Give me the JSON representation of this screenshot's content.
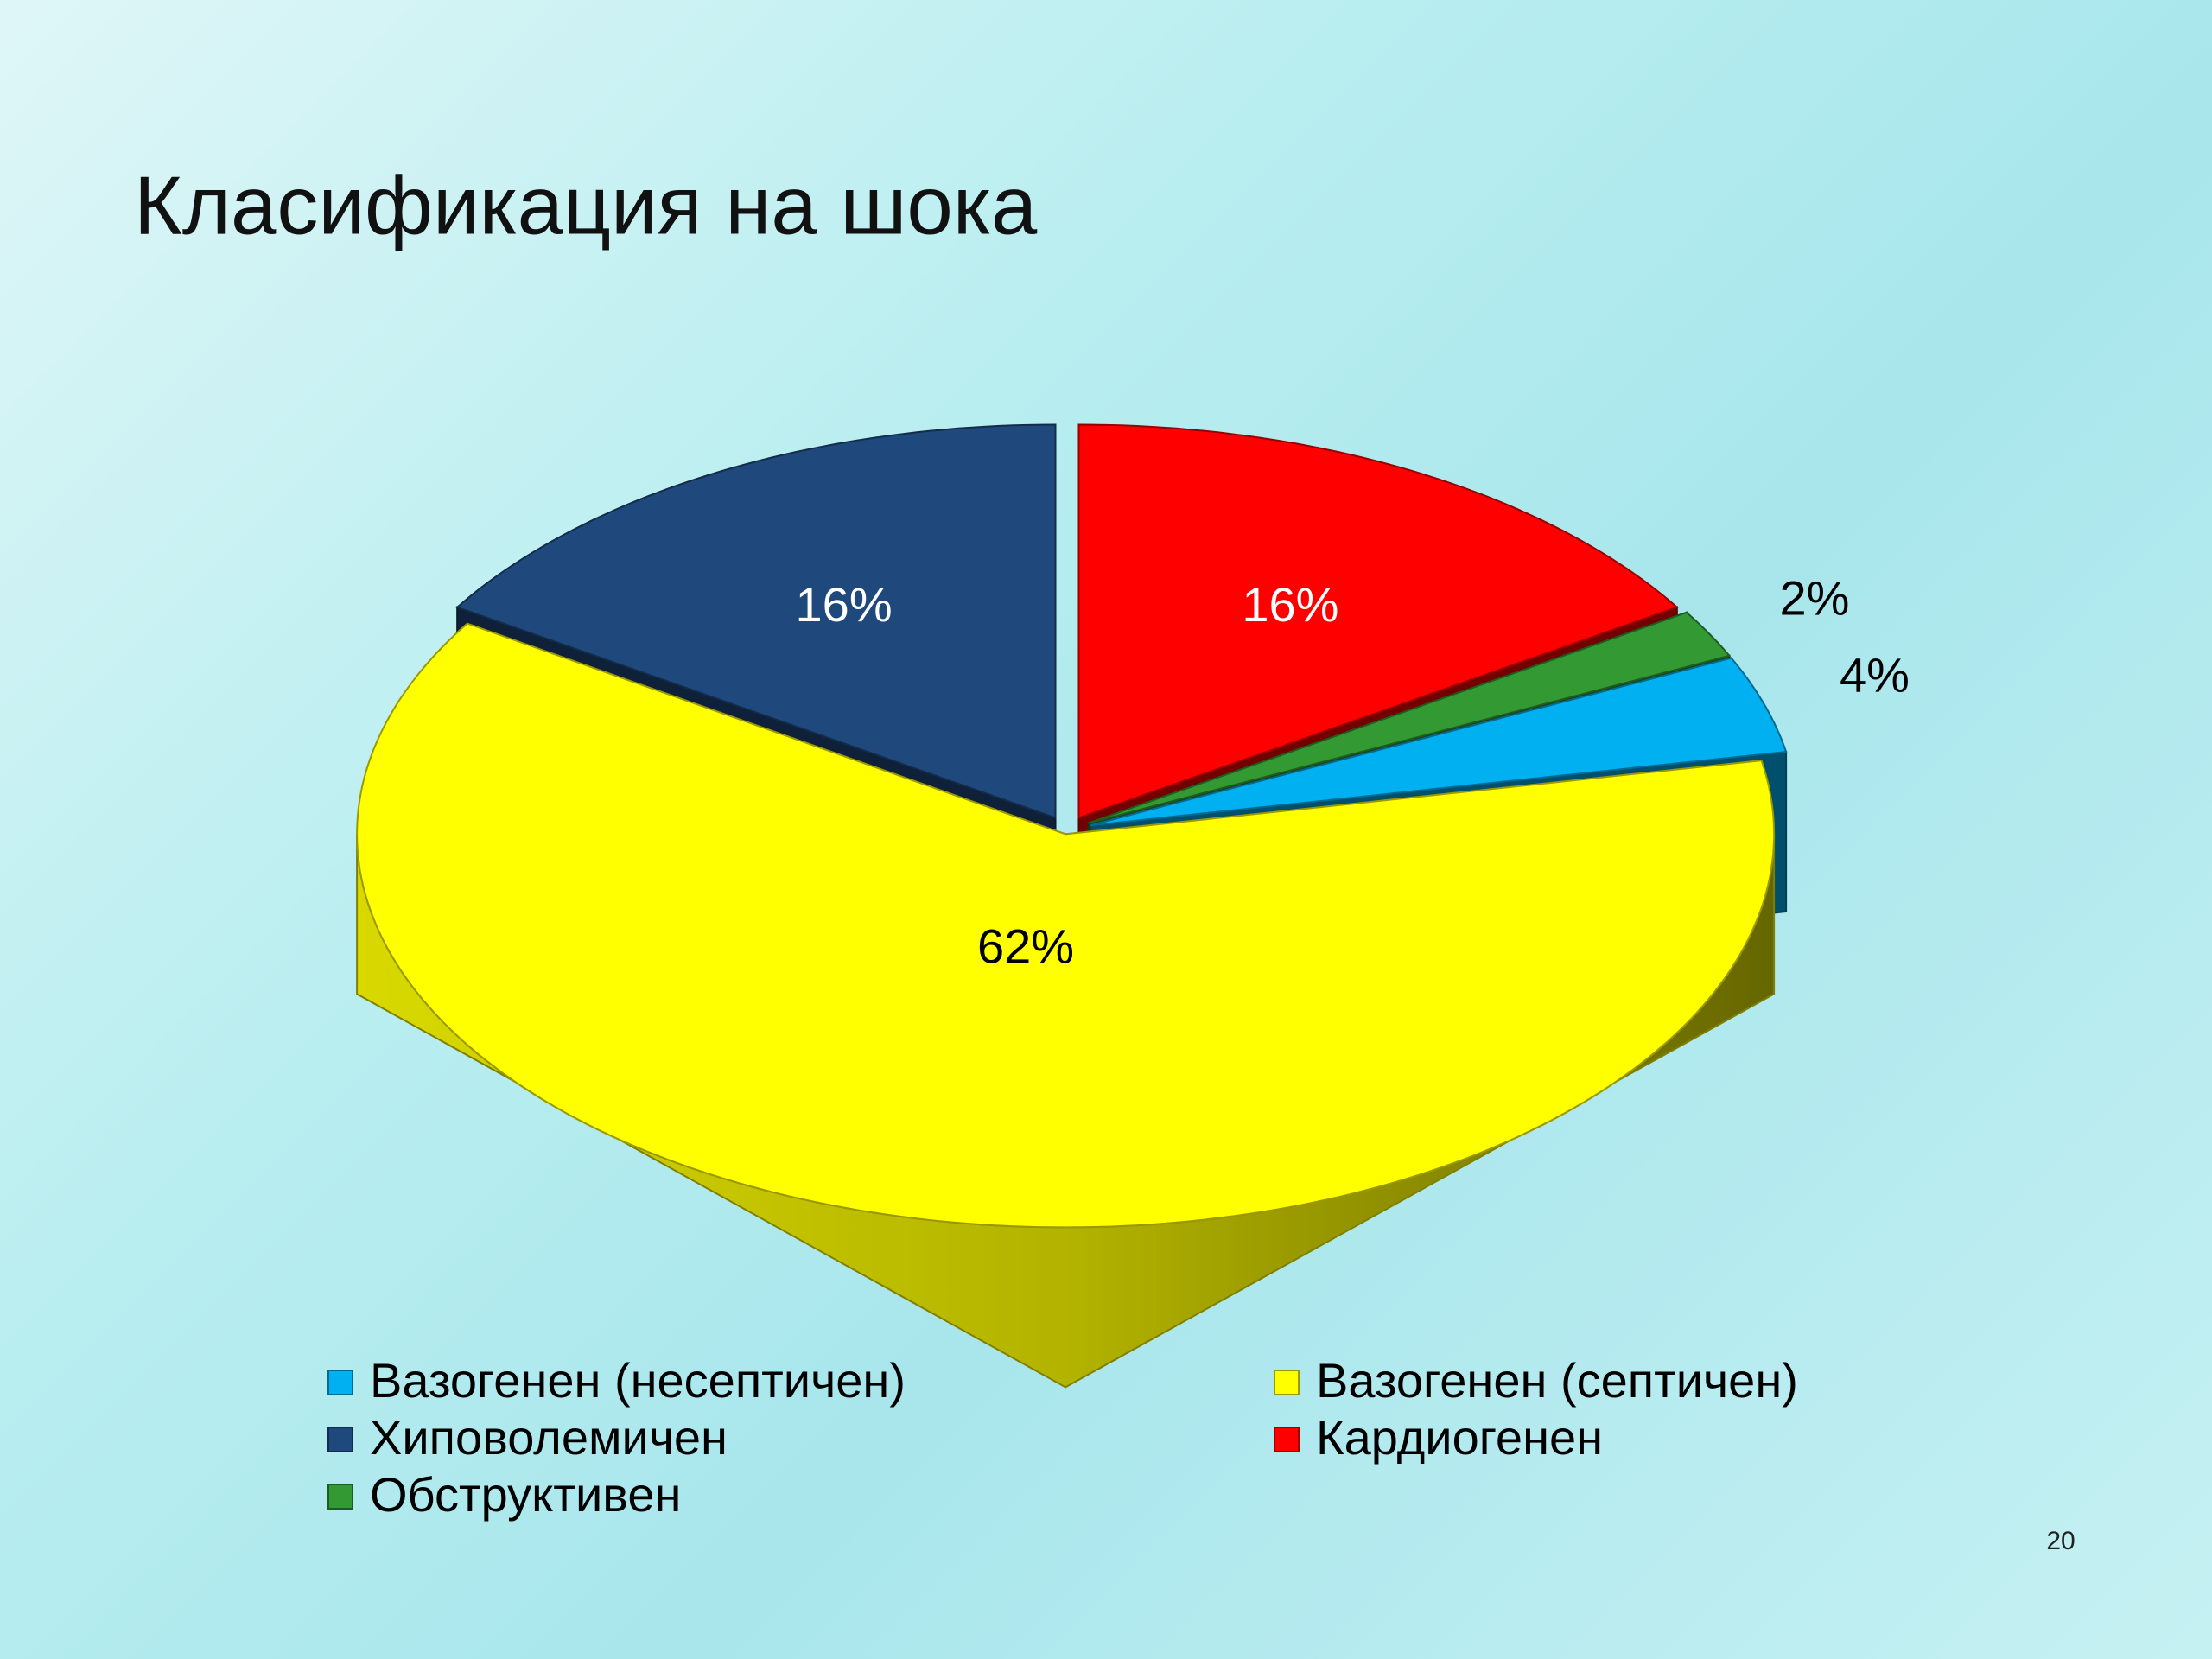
{
  "chart_data": {
    "type": "pie",
    "title": "Класификация на шока",
    "categories": [
      "Вазогенен (несептичен)",
      "Вазогенен (септичен)",
      "Хиповолемичен",
      "Кардиогенен",
      "Обструктивен"
    ],
    "values": [
      4,
      62,
      16,
      16,
      2
    ],
    "value_labels": [
      "4%",
      "62%",
      "16%",
      "16%",
      "2%"
    ],
    "colors": [
      "#00b0f0",
      "#ffff00",
      "#1f497d",
      "#ff0000",
      "#339933"
    ]
  },
  "page_number": "20"
}
